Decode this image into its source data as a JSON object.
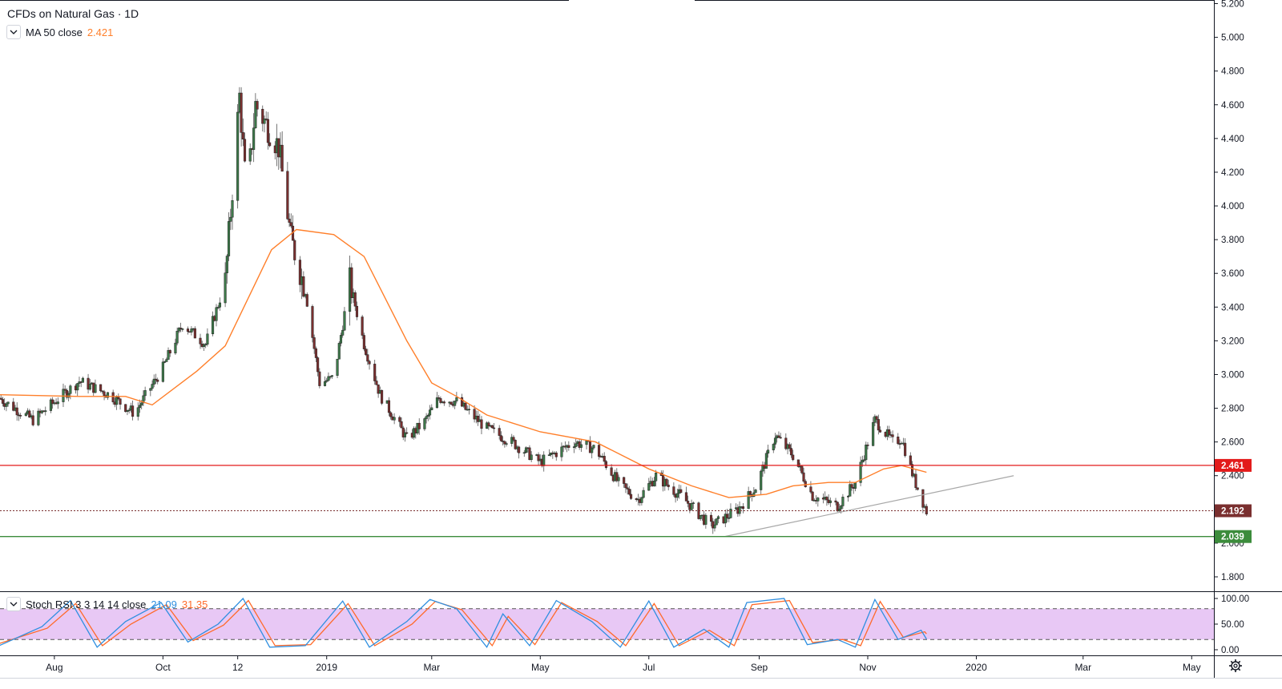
{
  "header": {
    "title": "CFDs on Natural Gas · 1D"
  },
  "legend_main": {
    "indicator_label": "MA 50 close",
    "indicator_value": "2.421"
  },
  "legend_osc": {
    "indicator_label": "Stoch RSI 3 3 14 14 close",
    "k_value": "21.09",
    "d_value": "31.35"
  },
  "colors": {
    "up": "#3d7a4a",
    "down": "#7a2f2f",
    "ma": "#ff7f2a",
    "resistance": "#e31b1b",
    "support": "#3c8c3c",
    "trendline": "#a8a8a8",
    "stoch_k": "#2f8fe0",
    "stoch_d": "#ff6a2a",
    "osc_band": "#e8c8f5"
  },
  "icons": {
    "collapse": "chevron-down-icon",
    "settings": "gear-icon"
  },
  "chart_data": {
    "type": "candlestick",
    "title": "CFDs on Natural Gas · 1D",
    "price_axis": {
      "ticks": [
        "5.200",
        "5.000",
        "4.800",
        "4.600",
        "4.400",
        "4.200",
        "4.000",
        "3.800",
        "3.600",
        "3.400",
        "3.200",
        "3.000",
        "2.800",
        "2.600",
        "2.400",
        "2.200",
        "2.000",
        "1.800"
      ],
      "range": [
        1.8,
        5.2
      ]
    },
    "time_axis": {
      "ticks": [
        "Aug",
        "Oct",
        "12",
        "2019",
        "Mar",
        "May",
        "Jul",
        "Sep",
        "Nov",
        "2020",
        "Mar",
        "May"
      ],
      "range": [
        "2018-07-01",
        "2020-06-01"
      ]
    },
    "last_date": "2019-12-04",
    "price_path": [
      [
        "2018-07-01",
        2.86
      ],
      [
        "2018-07-20",
        2.73
      ],
      [
        "2018-08-15",
        2.96
      ],
      [
        "2018-09-01",
        2.88
      ],
      [
        "2018-09-15",
        2.77
      ],
      [
        "2018-10-01",
        3.04
      ],
      [
        "2018-10-12",
        3.3
      ],
      [
        "2018-10-25",
        3.18
      ],
      [
        "2018-11-05",
        3.55
      ],
      [
        "2018-11-13",
        4.65
      ],
      [
        "2018-11-17",
        4.05
      ],
      [
        "2018-11-22",
        4.6
      ],
      [
        "2018-12-05",
        4.35
      ],
      [
        "2018-12-12",
        3.8
      ],
      [
        "2018-12-20",
        3.5
      ],
      [
        "2018-12-28",
        2.95
      ],
      [
        "2019-01-05",
        2.98
      ],
      [
        "2019-01-14",
        3.55
      ],
      [
        "2019-01-22",
        3.18
      ],
      [
        "2019-01-31",
        2.88
      ],
      [
        "2019-02-15",
        2.62
      ],
      [
        "2019-02-25",
        2.72
      ],
      [
        "2019-03-05",
        2.86
      ],
      [
        "2019-03-15",
        2.84
      ],
      [
        "2019-04-01",
        2.68
      ],
      [
        "2019-04-15",
        2.6
      ],
      [
        "2019-05-01",
        2.48
      ],
      [
        "2019-05-20",
        2.6
      ],
      [
        "2019-06-01",
        2.56
      ],
      [
        "2019-06-15",
        2.34
      ],
      [
        "2019-06-25",
        2.26
      ],
      [
        "2019-07-05",
        2.4
      ],
      [
        "2019-07-20",
        2.27
      ],
      [
        "2019-08-05",
        2.1
      ],
      [
        "2019-08-20",
        2.2
      ],
      [
        "2019-08-30",
        2.33
      ],
      [
        "2019-09-10",
        2.64
      ],
      [
        "2019-09-20",
        2.52
      ],
      [
        "2019-10-01",
        2.28
      ],
      [
        "2019-10-15",
        2.22
      ],
      [
        "2019-10-25",
        2.36
      ],
      [
        "2019-11-05",
        2.73
      ],
      [
        "2019-11-15",
        2.6
      ],
      [
        "2019-11-20",
        2.62
      ],
      [
        "2019-11-27",
        2.38
      ],
      [
        "2019-12-04",
        2.19
      ]
    ],
    "ma_50_path": [
      [
        "2018-07-01",
        2.88
      ],
      [
        "2018-08-15",
        2.87
      ],
      [
        "2018-09-10",
        2.87
      ],
      [
        "2018-09-25",
        2.82
      ],
      [
        "2018-10-20",
        3.02
      ],
      [
        "2018-11-05",
        3.17
      ],
      [
        "2018-12-01",
        3.74
      ],
      [
        "2018-12-15",
        3.86
      ],
      [
        "2019-01-05",
        3.83
      ],
      [
        "2019-01-22",
        3.7
      ],
      [
        "2019-02-15",
        3.2
      ],
      [
        "2019-03-01",
        2.95
      ],
      [
        "2019-03-15",
        2.87
      ],
      [
        "2019-04-01",
        2.76
      ],
      [
        "2019-05-01",
        2.66
      ],
      [
        "2019-06-01",
        2.6
      ],
      [
        "2019-07-01",
        2.44
      ],
      [
        "2019-07-25",
        2.34
      ],
      [
        "2019-08-15",
        2.27
      ],
      [
        "2019-09-05",
        2.29
      ],
      [
        "2019-09-20",
        2.34
      ],
      [
        "2019-10-10",
        2.36
      ],
      [
        "2019-10-25",
        2.36
      ],
      [
        "2019-11-10",
        2.44
      ],
      [
        "2019-11-20",
        2.46
      ],
      [
        "2019-12-04",
        2.42
      ]
    ],
    "horizontal_lines": [
      {
        "label": "2.461",
        "value": 2.461,
        "style": "solid",
        "color_key": "resistance"
      },
      {
        "label": "2.192",
        "value": 2.192,
        "style": "dotted",
        "color_key": "down"
      },
      {
        "label": "2.039",
        "value": 2.039,
        "style": "solid",
        "color_key": "support"
      }
    ],
    "trendline": {
      "from": [
        "2019-08-13",
        2.04
      ],
      "to": [
        "2020-01-22",
        2.4
      ]
    },
    "oscillator": {
      "name": "Stoch RSI 3 3 14 14 close",
      "ticks": [
        "100.00",
        "50.00",
        "0.00"
      ],
      "range": [
        0,
        100
      ],
      "band": [
        20,
        80
      ],
      "k_path": [
        [
          "2018-07-01",
          8
        ],
        [
          "2018-07-25",
          45
        ],
        [
          "2018-08-10",
          96
        ],
        [
          "2018-08-25",
          5
        ],
        [
          "2018-09-10",
          55
        ],
        [
          "2018-09-30",
          92
        ],
        [
          "2018-10-15",
          15
        ],
        [
          "2018-11-01",
          50
        ],
        [
          "2018-11-15",
          100
        ],
        [
          "2018-11-30",
          5
        ],
        [
          "2018-12-20",
          8
        ],
        [
          "2019-01-10",
          95
        ],
        [
          "2019-01-25",
          5
        ],
        [
          "2019-02-15",
          55
        ],
        [
          "2019-02-28",
          98
        ],
        [
          "2019-03-15",
          80
        ],
        [
          "2019-04-01",
          5
        ],
        [
          "2019-04-10",
          70
        ],
        [
          "2019-04-25",
          8
        ],
        [
          "2019-05-10",
          96
        ],
        [
          "2019-05-30",
          55
        ],
        [
          "2019-06-15",
          5
        ],
        [
          "2019-07-01",
          95
        ],
        [
          "2019-07-15",
          5
        ],
        [
          "2019-08-01",
          40
        ],
        [
          "2019-08-15",
          5
        ],
        [
          "2019-08-25",
          92
        ],
        [
          "2019-09-15",
          100
        ],
        [
          "2019-09-28",
          10
        ],
        [
          "2019-10-15",
          20
        ],
        [
          "2019-10-25",
          5
        ],
        [
          "2019-11-05",
          98
        ],
        [
          "2019-11-18",
          20
        ],
        [
          "2019-12-01",
          38
        ],
        [
          "2019-12-04",
          21
        ]
      ],
      "d_path": [
        [
          "2018-07-01",
          12
        ],
        [
          "2018-07-28",
          42
        ],
        [
          "2018-08-13",
          90
        ],
        [
          "2018-08-28",
          8
        ],
        [
          "2018-09-13",
          50
        ],
        [
          "2018-10-03",
          88
        ],
        [
          "2018-10-18",
          18
        ],
        [
          "2018-11-04",
          48
        ],
        [
          "2018-11-18",
          96
        ],
        [
          "2018-12-03",
          8
        ],
        [
          "2018-12-23",
          10
        ],
        [
          "2019-01-13",
          90
        ],
        [
          "2019-01-28",
          8
        ],
        [
          "2019-02-18",
          50
        ],
        [
          "2019-03-03",
          94
        ],
        [
          "2019-03-18",
          78
        ],
        [
          "2019-04-04",
          8
        ],
        [
          "2019-04-13",
          65
        ],
        [
          "2019-04-28",
          10
        ],
        [
          "2019-05-13",
          92
        ],
        [
          "2019-06-02",
          55
        ],
        [
          "2019-06-18",
          8
        ],
        [
          "2019-07-04",
          90
        ],
        [
          "2019-07-18",
          8
        ],
        [
          "2019-08-04",
          38
        ],
        [
          "2019-08-18",
          8
        ],
        [
          "2019-08-28",
          88
        ],
        [
          "2019-09-18",
          96
        ],
        [
          "2019-10-01",
          14
        ],
        [
          "2019-10-18",
          20
        ],
        [
          "2019-10-28",
          8
        ],
        [
          "2019-11-08",
          94
        ],
        [
          "2019-11-21",
          24
        ],
        [
          "2019-12-03",
          35
        ],
        [
          "2019-12-04",
          31
        ]
      ]
    }
  }
}
